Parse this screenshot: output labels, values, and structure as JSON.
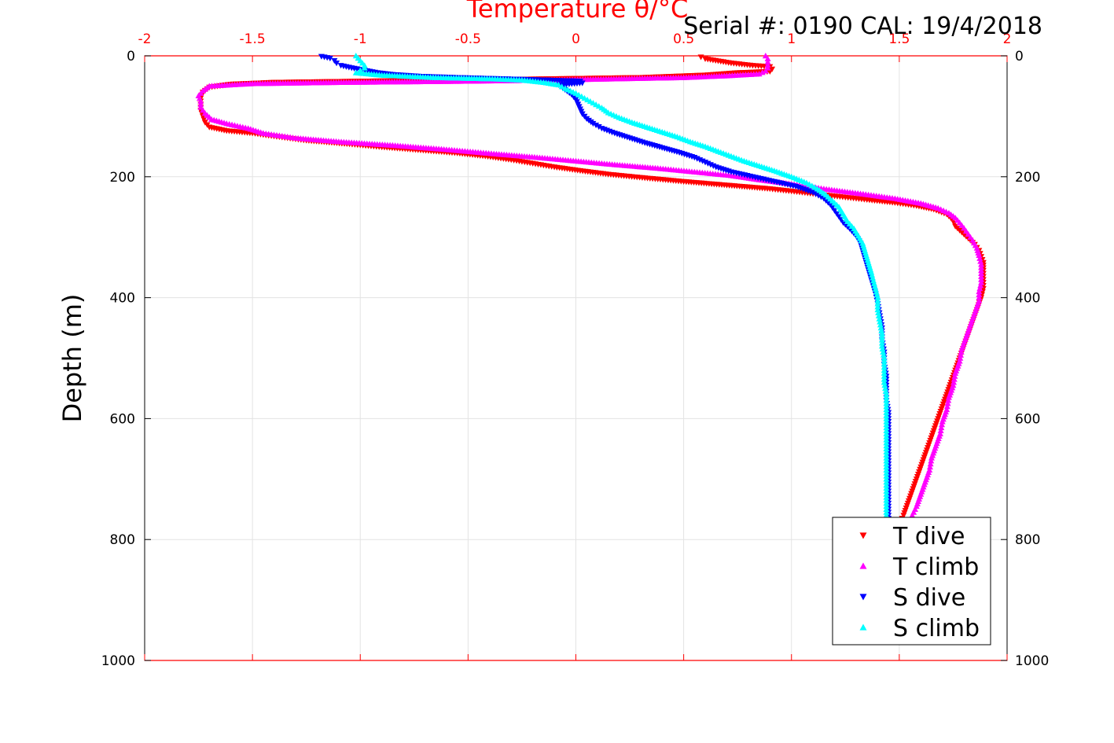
{
  "chart_data": {
    "type": "scatter",
    "title": "Serial #: 0190  CAL: 19/4/2018",
    "xlabel": "Temperature θ/°C",
    "ylabel": "Depth (m)",
    "xlim": [
      -2,
      2
    ],
    "ylim": [
      1000,
      0
    ],
    "y_reversed": true,
    "x_axis_position": "top",
    "x_axis_color": "#ff0000",
    "grid": true,
    "legend_position": "bottom-right",
    "x_ticks": [
      "-2",
      "-1.5",
      "-1",
      "-0.5",
      "0",
      "0.5",
      "1",
      "1.5",
      "2"
    ],
    "x_tick_values": [
      -2,
      -1.5,
      -1,
      -0.5,
      0,
      0.5,
      1,
      1.5,
      2
    ],
    "y_ticks": [
      "0",
      "200",
      "400",
      "600",
      "800",
      "1000"
    ],
    "y_tick_values": [
      0,
      200,
      400,
      600,
      800,
      1000
    ],
    "series": [
      {
        "name": "T dive",
        "color": "#ff0000",
        "marker": "triangle-down",
        "points": [
          [
            0.58,
            2
          ],
          [
            0.6,
            5
          ],
          [
            0.72,
            12
          ],
          [
            0.82,
            16
          ],
          [
            0.9,
            18
          ],
          [
            0.91,
            22
          ],
          [
            0.9,
            26
          ],
          [
            0.75,
            28
          ],
          [
            0.6,
            32
          ],
          [
            0.3,
            36
          ],
          [
            -0.1,
            38
          ],
          [
            -0.5,
            40
          ],
          [
            -1.0,
            42
          ],
          [
            -1.4,
            44
          ],
          [
            -1.6,
            47
          ],
          [
            -1.7,
            52
          ],
          [
            -1.73,
            60
          ],
          [
            -1.74,
            70
          ],
          [
            -1.74,
            80
          ],
          [
            -1.74,
            90
          ],
          [
            -1.73,
            100
          ],
          [
            -1.72,
            110
          ],
          [
            -1.7,
            118
          ],
          [
            -1.62,
            124
          ],
          [
            -1.5,
            128
          ],
          [
            -1.4,
            133
          ],
          [
            -1.25,
            140
          ],
          [
            -1.05,
            146
          ],
          [
            -0.9,
            151
          ],
          [
            -0.72,
            156
          ],
          [
            -0.55,
            161
          ],
          [
            -0.42,
            166
          ],
          [
            -0.3,
            172
          ],
          [
            -0.2,
            178
          ],
          [
            -0.1,
            184
          ],
          [
            0.02,
            190
          ],
          [
            0.15,
            196
          ],
          [
            0.32,
            202
          ],
          [
            0.5,
            208
          ],
          [
            0.7,
            214
          ],
          [
            0.9,
            220
          ],
          [
            1.05,
            226
          ],
          [
            1.2,
            232
          ],
          [
            1.35,
            238
          ],
          [
            1.48,
            243
          ],
          [
            1.58,
            248
          ],
          [
            1.66,
            254
          ],
          [
            1.72,
            262
          ],
          [
            1.75,
            272
          ],
          [
            1.76,
            282
          ],
          [
            1.79,
            292
          ],
          [
            1.82,
            302
          ],
          [
            1.85,
            312
          ],
          [
            1.87,
            322
          ],
          [
            1.88,
            332
          ],
          [
            1.89,
            342
          ],
          [
            1.89,
            355
          ],
          [
            1.89,
            370
          ],
          [
            1.89,
            385
          ],
          [
            1.88,
            400
          ],
          [
            1.86,
            420
          ],
          [
            1.84,
            440
          ],
          [
            1.82,
            460
          ],
          [
            1.8,
            480
          ],
          [
            1.78,
            500
          ],
          [
            1.76,
            520
          ],
          [
            1.74,
            540
          ],
          [
            1.72,
            560
          ],
          [
            1.7,
            580
          ],
          [
            1.68,
            600
          ],
          [
            1.66,
            620
          ],
          [
            1.64,
            640
          ],
          [
            1.62,
            660
          ],
          [
            1.6,
            680
          ],
          [
            1.58,
            700
          ],
          [
            1.56,
            720
          ],
          [
            1.54,
            740
          ],
          [
            1.52,
            760
          ],
          [
            1.5,
            775
          ]
        ]
      },
      {
        "name": "T climb",
        "color": "#ff00ff",
        "marker": "triangle-up",
        "points": [
          [
            0.88,
            0
          ],
          [
            0.89,
            5
          ],
          [
            0.89,
            10
          ],
          [
            0.89,
            15
          ],
          [
            0.89,
            20
          ],
          [
            0.88,
            25
          ],
          [
            0.85,
            30
          ],
          [
            0.7,
            33
          ],
          [
            0.5,
            36
          ],
          [
            0.2,
            38
          ],
          [
            -0.1,
            40
          ],
          [
            -0.5,
            42
          ],
          [
            -1.1,
            44
          ],
          [
            -1.5,
            46
          ],
          [
            -1.7,
            50
          ],
          [
            -1.73,
            58
          ],
          [
            -1.75,
            66
          ],
          [
            -1.74,
            75
          ],
          [
            -1.74,
            85
          ],
          [
            -1.72,
            95
          ],
          [
            -1.69,
            105
          ],
          [
            -1.62,
            112
          ],
          [
            -1.52,
            120
          ],
          [
            -1.45,
            128
          ],
          [
            -1.3,
            136
          ],
          [
            -1.1,
            142
          ],
          [
            -0.85,
            148
          ],
          [
            -0.6,
            155
          ],
          [
            -0.38,
            162
          ],
          [
            -0.18,
            168
          ],
          [
            0.0,
            174
          ],
          [
            0.18,
            180
          ],
          [
            0.38,
            186
          ],
          [
            0.55,
            192
          ],
          [
            0.72,
            198
          ],
          [
            0.85,
            205
          ],
          [
            1.0,
            212
          ],
          [
            1.15,
            220
          ],
          [
            1.32,
            228
          ],
          [
            1.48,
            236
          ],
          [
            1.6,
            244
          ],
          [
            1.68,
            252
          ],
          [
            1.73,
            260
          ],
          [
            1.76,
            268
          ],
          [
            1.78,
            276
          ],
          [
            1.8,
            285
          ],
          [
            1.82,
            295
          ],
          [
            1.84,
            305
          ],
          [
            1.86,
            318
          ],
          [
            1.87,
            330
          ],
          [
            1.88,
            345
          ],
          [
            1.88,
            360
          ],
          [
            1.88,
            375
          ],
          [
            1.87,
            390
          ],
          [
            1.87,
            405
          ],
          [
            1.85,
            425
          ],
          [
            1.83,
            445
          ],
          [
            1.81,
            465
          ],
          [
            1.79,
            485
          ],
          [
            1.78,
            505
          ],
          [
            1.76,
            525
          ],
          [
            1.75,
            545
          ],
          [
            1.73,
            565
          ],
          [
            1.72,
            585
          ],
          [
            1.7,
            605
          ],
          [
            1.69,
            625
          ],
          [
            1.67,
            645
          ],
          [
            1.65,
            665
          ],
          [
            1.64,
            685
          ],
          [
            1.62,
            705
          ],
          [
            1.6,
            725
          ],
          [
            1.58,
            745
          ],
          [
            1.56,
            760
          ]
        ]
      },
      {
        "name": "S dive",
        "color": "#0000ff",
        "marker": "triangle-down",
        "points": [
          [
            -1.18,
            1
          ],
          [
            -1.14,
            4
          ],
          [
            -1.12,
            8
          ],
          [
            -1.11,
            12
          ],
          [
            -1.09,
            16
          ],
          [
            -1.04,
            20
          ],
          [
            -0.98,
            24
          ],
          [
            -0.92,
            28
          ],
          [
            -0.85,
            31
          ],
          [
            -0.72,
            34
          ],
          [
            -0.55,
            36
          ],
          [
            -0.35,
            38
          ],
          [
            -0.15,
            40
          ],
          [
            0.02,
            42
          ],
          [
            0.03,
            45
          ],
          [
            -0.08,
            48
          ],
          [
            -0.05,
            56
          ],
          [
            -0.02,
            64
          ],
          [
            0.0,
            72
          ],
          [
            0.01,
            80
          ],
          [
            0.02,
            88
          ],
          [
            0.03,
            96
          ],
          [
            0.05,
            104
          ],
          [
            0.08,
            112
          ],
          [
            0.12,
            120
          ],
          [
            0.18,
            128
          ],
          [
            0.25,
            136
          ],
          [
            0.32,
            144
          ],
          [
            0.4,
            152
          ],
          [
            0.48,
            160
          ],
          [
            0.55,
            168
          ],
          [
            0.6,
            176
          ],
          [
            0.65,
            184
          ],
          [
            0.72,
            192
          ],
          [
            0.82,
            200
          ],
          [
            0.92,
            208
          ],
          [
            1.02,
            216
          ],
          [
            1.1,
            226
          ],
          [
            1.15,
            236
          ],
          [
            1.18,
            246
          ],
          [
            1.2,
            256
          ],
          [
            1.22,
            266
          ],
          [
            1.24,
            276
          ],
          [
            1.27,
            286
          ],
          [
            1.3,
            298
          ],
          [
            1.32,
            310
          ],
          [
            1.33,
            322
          ],
          [
            1.34,
            334
          ],
          [
            1.35,
            346
          ],
          [
            1.36,
            358
          ],
          [
            1.37,
            370
          ],
          [
            1.38,
            382
          ],
          [
            1.39,
            394
          ],
          [
            1.4,
            410
          ],
          [
            1.41,
            430
          ],
          [
            1.42,
            450
          ],
          [
            1.42,
            470
          ],
          [
            1.43,
            490
          ],
          [
            1.43,
            510
          ],
          [
            1.44,
            530
          ],
          [
            1.44,
            550
          ],
          [
            1.44,
            570
          ],
          [
            1.45,
            590
          ],
          [
            1.45,
            610
          ],
          [
            1.45,
            630
          ],
          [
            1.45,
            650
          ],
          [
            1.45,
            670
          ],
          [
            1.45,
            690
          ],
          [
            1.45,
            710
          ],
          [
            1.45,
            730
          ],
          [
            1.45,
            750
          ],
          [
            1.45,
            770
          ]
        ]
      },
      {
        "name": "S climb",
        "color": "#00ffff",
        "marker": "triangle-up",
        "points": [
          [
            -1.02,
            0
          ],
          [
            -1.01,
            4
          ],
          [
            -1.0,
            8
          ],
          [
            -0.99,
            12
          ],
          [
            -0.98,
            16
          ],
          [
            -0.98,
            20
          ],
          [
            -1.0,
            24
          ],
          [
            -1.02,
            28
          ],
          [
            -0.9,
            32
          ],
          [
            -0.65,
            36
          ],
          [
            -0.4,
            38
          ],
          [
            -0.25,
            40
          ],
          [
            -0.15,
            44
          ],
          [
            -0.08,
            48
          ],
          [
            -0.05,
            54
          ],
          [
            0.0,
            62
          ],
          [
            0.04,
            70
          ],
          [
            0.08,
            78
          ],
          [
            0.12,
            86
          ],
          [
            0.15,
            94
          ],
          [
            0.2,
            102
          ],
          [
            0.26,
            110
          ],
          [
            0.33,
            118
          ],
          [
            0.4,
            126
          ],
          [
            0.47,
            134
          ],
          [
            0.53,
            142
          ],
          [
            0.6,
            150
          ],
          [
            0.66,
            158
          ],
          [
            0.72,
            166
          ],
          [
            0.78,
            174
          ],
          [
            0.85,
            182
          ],
          [
            0.92,
            190
          ],
          [
            1.0,
            200
          ],
          [
            1.07,
            210
          ],
          [
            1.12,
            220
          ],
          [
            1.16,
            230
          ],
          [
            1.19,
            240
          ],
          [
            1.22,
            250
          ],
          [
            1.24,
            262
          ],
          [
            1.26,
            274
          ],
          [
            1.29,
            286
          ],
          [
            1.31,
            298
          ],
          [
            1.33,
            310
          ],
          [
            1.34,
            322
          ],
          [
            1.35,
            334
          ],
          [
            1.36,
            346
          ],
          [
            1.37,
            358
          ],
          [
            1.38,
            372
          ],
          [
            1.39,
            386
          ],
          [
            1.4,
            400
          ],
          [
            1.4,
            420
          ],
          [
            1.41,
            440
          ],
          [
            1.42,
            460
          ],
          [
            1.42,
            480
          ],
          [
            1.43,
            500
          ],
          [
            1.43,
            520
          ],
          [
            1.43,
            540
          ],
          [
            1.44,
            560
          ],
          [
            1.44,
            580
          ],
          [
            1.44,
            600
          ],
          [
            1.44,
            620
          ],
          [
            1.44,
            640
          ],
          [
            1.44,
            660
          ],
          [
            1.44,
            680
          ],
          [
            1.44,
            700
          ],
          [
            1.44,
            720
          ],
          [
            1.44,
            740
          ],
          [
            1.44,
            760
          ]
        ]
      }
    ]
  }
}
